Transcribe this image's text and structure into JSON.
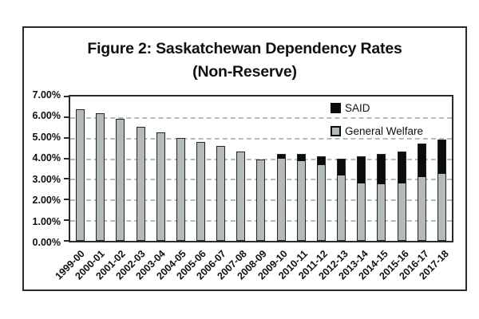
{
  "figure": {
    "title_line1": "Figure 2: Saskatchewan Dependency Rates",
    "title_line2": "(Non-Reserve)"
  },
  "chart_data": {
    "type": "bar",
    "stacked": true,
    "title": "Figure 2: Saskatchewan Dependency Rates (Non-Reserve)",
    "xlabel": "",
    "ylabel": "",
    "ylim": [
      0,
      7
    ],
    "grid": "horizontal-dashed",
    "legend_position": "top-right-inside",
    "legend_order": [
      "SAID",
      "General Welfare"
    ],
    "yticks": [
      {
        "value": 7,
        "label": "7.00%"
      },
      {
        "value": 6,
        "label": "6.00%"
      },
      {
        "value": 5,
        "label": "5.00%"
      },
      {
        "value": 4,
        "label": "4.00%"
      },
      {
        "value": 3,
        "label": "3.00%"
      },
      {
        "value": 2,
        "label": "2.00%"
      },
      {
        "value": 1,
        "label": "1.00%"
      },
      {
        "value": 0,
        "label": "0.00%"
      }
    ],
    "categories": [
      "1999-00",
      "2000-01",
      "2001-02",
      "2002-03",
      "2003-04",
      "2004-05",
      "2005-06",
      "2006-07",
      "2007-08",
      "2008-09",
      "2009-10",
      "2010-11",
      "2011-12",
      "2012-13",
      "2013-14",
      "2014-15",
      "2015-16",
      "2016-17",
      "2017-18"
    ],
    "series": [
      {
        "name": "SAID",
        "color": "#0c0c0c",
        "stack": "top",
        "values": [
          0,
          0,
          0,
          0,
          0,
          0,
          0,
          0,
          0,
          0,
          0.2,
          0.3,
          0.4,
          0.8,
          1.3,
          1.45,
          1.55,
          1.6,
          1.65
        ]
      },
      {
        "name": "General Welfare",
        "color": "#b3bab7",
        "stack": "bottom",
        "values": [
          6.4,
          6.2,
          5.9,
          5.55,
          5.25,
          5.0,
          4.8,
          4.6,
          4.35,
          3.95,
          4.0,
          3.9,
          3.7,
          3.2,
          2.8,
          2.75,
          2.8,
          3.1,
          3.25
        ]
      }
    ],
    "totals": [
      6.4,
      6.2,
      5.9,
      5.55,
      5.25,
      5.0,
      4.8,
      4.6,
      4.35,
      3.95,
      4.2,
      4.2,
      4.1,
      4.0,
      4.1,
      4.2,
      4.35,
      4.7,
      4.9
    ]
  },
  "colors": {
    "bar_general_welfare": "#b3bab7",
    "bar_said": "#0c0c0c",
    "gridline": "#b5bcb8",
    "frame": "#252b2e",
    "text": "#101010",
    "background": "#ffffff"
  }
}
